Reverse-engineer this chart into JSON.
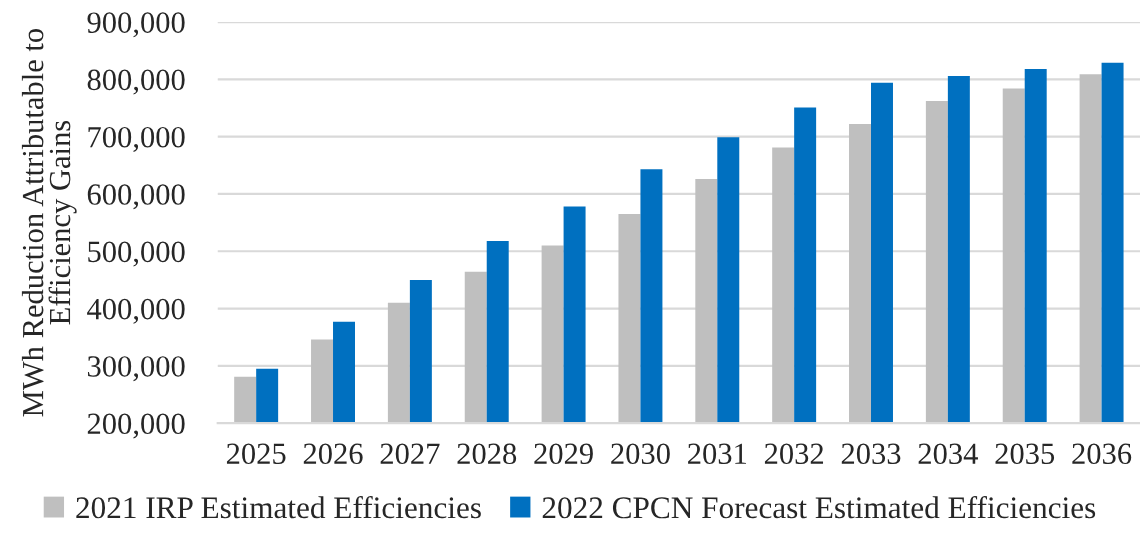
{
  "chart_data": {
    "type": "bar",
    "ylabel": "MWh Reduction Attributable to\nEfficiency Gains",
    "categories": [
      "2025",
      "2026",
      "2027",
      "2028",
      "2029",
      "2030",
      "2031",
      "2032",
      "2033",
      "2034",
      "2035",
      "2036"
    ],
    "series": [
      {
        "name": "2021 IRP Estimated Efficiencies",
        "color": "#bfbfbf",
        "values": [
          281000,
          346000,
          410000,
          464000,
          510000,
          565000,
          626000,
          681000,
          722000,
          762000,
          784000,
          809000
        ]
      },
      {
        "name": "2022 CPCN Forecast Estimated Efficiencies",
        "color": "#0070c0",
        "values": [
          295000,
          377000,
          450000,
          518000,
          578000,
          643000,
          699000,
          751000,
          794000,
          806000,
          818000,
          829000
        ]
      }
    ],
    "ylim": [
      200000,
      900000
    ],
    "yticks": [
      {
        "value": 200000,
        "label": "200,000"
      },
      {
        "value": 300000,
        "label": "300,000"
      },
      {
        "value": 400000,
        "label": "400,000"
      },
      {
        "value": 500000,
        "label": "500,000"
      },
      {
        "value": 600000,
        "label": "600,000"
      },
      {
        "value": 700000,
        "label": "700,000"
      },
      {
        "value": 800000,
        "label": "800,000"
      },
      {
        "value": 900000,
        "label": "900,000"
      }
    ],
    "grid": "y",
    "legend": "bottom"
  }
}
